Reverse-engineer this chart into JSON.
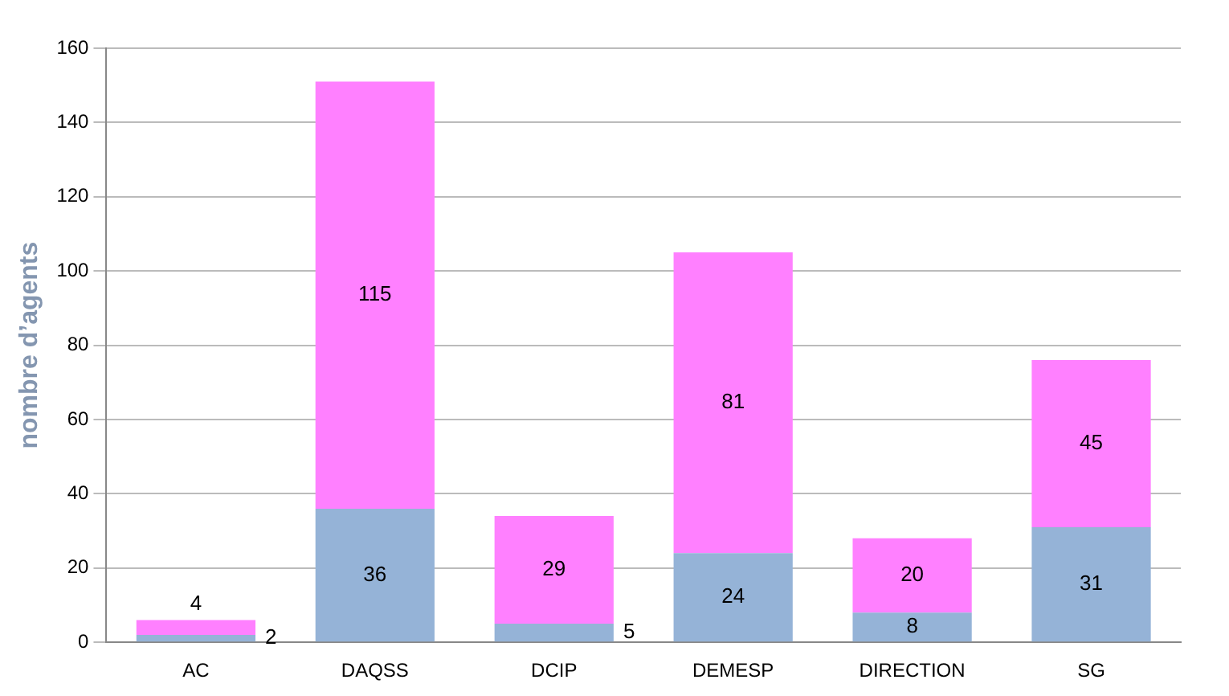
{
  "chart_data": {
    "type": "bar",
    "stacked": true,
    "ylabel": "nombre d’agents",
    "categories": [
      "AC",
      "DAQSS",
      "DCIP",
      "DEMESP",
      "DIRECTION",
      "SG"
    ],
    "series": [
      {
        "color": "#95b3d7",
        "values": [
          2,
          36,
          5,
          24,
          8,
          31
        ]
      },
      {
        "color": "#ff80ff",
        "values": [
          4,
          115,
          29,
          81,
          20,
          45
        ]
      }
    ],
    "ylim": [
      0,
      160
    ],
    "yticks": [
      0,
      20,
      40,
      60,
      80,
      100,
      120,
      140,
      160
    ],
    "grid": "y",
    "data_labels": true,
    "legend": false
  }
}
